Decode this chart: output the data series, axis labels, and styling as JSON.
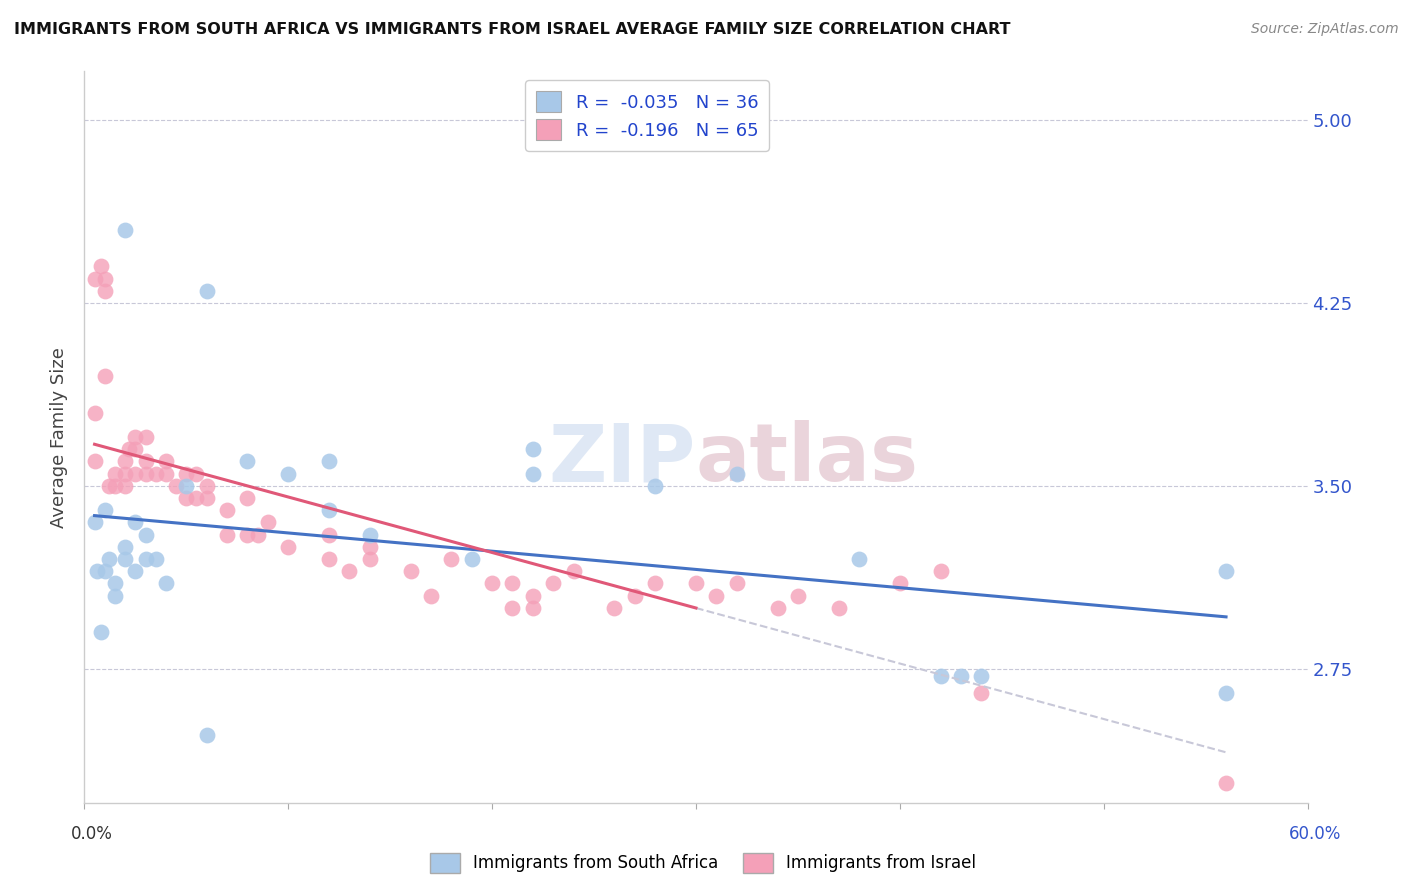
{
  "title": "IMMIGRANTS FROM SOUTH AFRICA VS IMMIGRANTS FROM ISRAEL AVERAGE FAMILY SIZE CORRELATION CHART",
  "source": "Source: ZipAtlas.com",
  "ylabel": "Average Family Size",
  "yticks": [
    2.75,
    3.5,
    4.25,
    5.0
  ],
  "xlim": [
    0.0,
    0.6
  ],
  "ylim": [
    2.2,
    5.2
  ],
  "r_south_africa": "-0.035",
  "n_south_africa": "36",
  "r_israel": "-0.196",
  "n_israel": "65",
  "color_south_africa": "#a8c8e8",
  "color_israel": "#f4a0b8",
  "trendline_color_south_africa": "#4472c4",
  "trendline_color_israel": "#e05878",
  "trendline_dashed_color": "#c8c8d8",
  "watermark_zip": "ZIP",
  "watermark_atlas": "atlas",
  "south_africa_x": [
    0.005,
    0.006,
    0.008,
    0.01,
    0.01,
    0.012,
    0.015,
    0.015,
    0.02,
    0.02,
    0.025,
    0.025,
    0.03,
    0.03,
    0.035,
    0.04,
    0.05,
    0.06,
    0.08,
    0.1,
    0.12,
    0.12,
    0.14,
    0.19,
    0.22,
    0.22,
    0.28,
    0.32,
    0.38,
    0.42,
    0.43,
    0.44,
    0.56,
    0.56,
    0.02,
    0.06
  ],
  "south_africa_y": [
    3.35,
    3.15,
    2.9,
    3.4,
    3.15,
    3.2,
    3.05,
    3.1,
    3.25,
    3.2,
    3.35,
    3.15,
    3.3,
    3.2,
    3.2,
    3.1,
    3.5,
    4.3,
    3.6,
    3.55,
    3.6,
    3.4,
    3.3,
    3.2,
    3.55,
    3.65,
    3.5,
    3.55,
    3.2,
    2.72,
    2.72,
    2.72,
    2.65,
    3.15,
    4.55,
    2.48
  ],
  "israel_x": [
    0.005,
    0.005,
    0.005,
    0.008,
    0.01,
    0.01,
    0.01,
    0.012,
    0.015,
    0.015,
    0.02,
    0.02,
    0.02,
    0.022,
    0.025,
    0.025,
    0.025,
    0.03,
    0.03,
    0.03,
    0.035,
    0.04,
    0.04,
    0.045,
    0.05,
    0.05,
    0.055,
    0.055,
    0.06,
    0.06,
    0.07,
    0.07,
    0.08,
    0.08,
    0.085,
    0.09,
    0.1,
    0.12,
    0.12,
    0.13,
    0.14,
    0.14,
    0.16,
    0.17,
    0.18,
    0.2,
    0.21,
    0.21,
    0.22,
    0.22,
    0.23,
    0.24,
    0.26,
    0.27,
    0.28,
    0.3,
    0.31,
    0.32,
    0.34,
    0.35,
    0.37,
    0.4,
    0.42,
    0.44,
    0.56
  ],
  "israel_y": [
    3.6,
    3.8,
    4.35,
    4.4,
    3.95,
    4.35,
    4.3,
    3.5,
    3.55,
    3.5,
    3.55,
    3.5,
    3.6,
    3.65,
    3.55,
    3.65,
    3.7,
    3.55,
    3.6,
    3.7,
    3.55,
    3.6,
    3.55,
    3.5,
    3.45,
    3.55,
    3.45,
    3.55,
    3.45,
    3.5,
    3.3,
    3.4,
    3.3,
    3.45,
    3.3,
    3.35,
    3.25,
    3.2,
    3.3,
    3.15,
    3.2,
    3.25,
    3.15,
    3.05,
    3.2,
    3.1,
    3.0,
    3.1,
    3.05,
    3.0,
    3.1,
    3.15,
    3.0,
    3.05,
    3.1,
    3.1,
    3.05,
    3.1,
    3.0,
    3.05,
    3.0,
    3.1,
    3.15,
    2.65,
    2.28
  ],
  "xtick_positions": [
    0.0,
    0.1,
    0.2,
    0.3,
    0.4,
    0.5,
    0.6
  ]
}
